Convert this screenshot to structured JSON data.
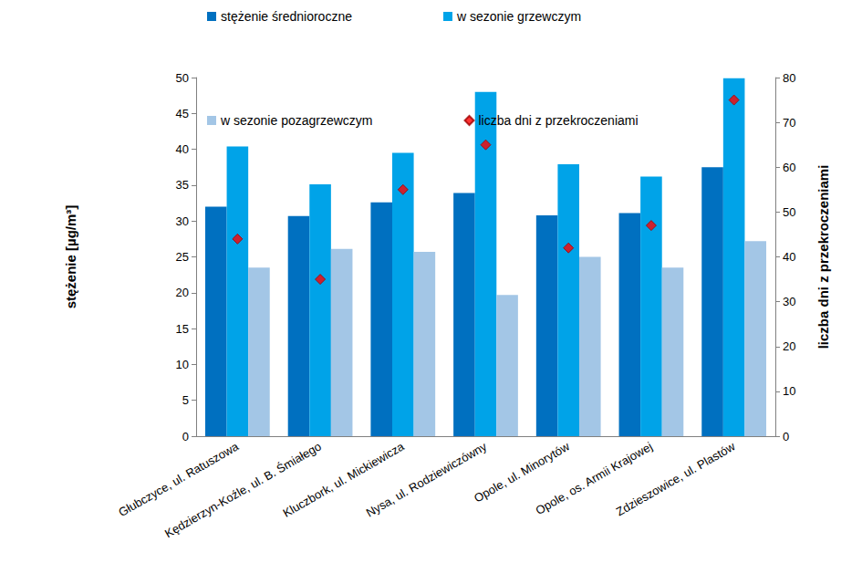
{
  "chart_data": {
    "type": "bar",
    "y_label": "stężenie [µg/m³]",
    "y2_label": "liczba dni z przekroczeniami",
    "categories": [
      "Głubczyce, ul. Ratuszowa",
      "Kędzierzyn-Koźle, ul. B. Śmiałego",
      "Kluczbork, ul. Mickiewicza",
      "Nysa, ul. Rodziewiczówny",
      "Opole, ul. Minorytów",
      "Opole, os. Armii Krajowej",
      "Zdzieszowice, ul. Plastów"
    ],
    "series": [
      {
        "name": "stężenie średnioroczne",
        "color": "#0070c0",
        "values": [
          32.0,
          30.7,
          32.6,
          33.9,
          30.8,
          31.1,
          37.5
        ]
      },
      {
        "name": "w sezonie grzewczym",
        "color": "#00a3e8",
        "values": [
          40.4,
          35.1,
          39.5,
          48.0,
          37.9,
          36.2,
          49.9
        ]
      },
      {
        "name": "w sezonie pozagrzewczym",
        "color": "#a3c6e6",
        "values": [
          23.5,
          26.1,
          25.7,
          19.7,
          25.0,
          23.5,
          27.2
        ]
      },
      {
        "name": "liczba dni z przekroczeniami",
        "type": "scatter",
        "marker": "diamond",
        "axis": "y2",
        "color": "#ff0000",
        "values": [
          44,
          35,
          55,
          65,
          42,
          47,
          75
        ]
      }
    ],
    "ylim": [
      0,
      50
    ],
    "yticks": [
      0,
      5,
      10,
      15,
      20,
      25,
      30,
      35,
      40,
      45,
      50
    ],
    "y2lim": [
      0,
      80
    ],
    "y2ticks": [
      0,
      10,
      20,
      30,
      40,
      50,
      60,
      70,
      80
    ],
    "grid": false,
    "legend": "top"
  }
}
